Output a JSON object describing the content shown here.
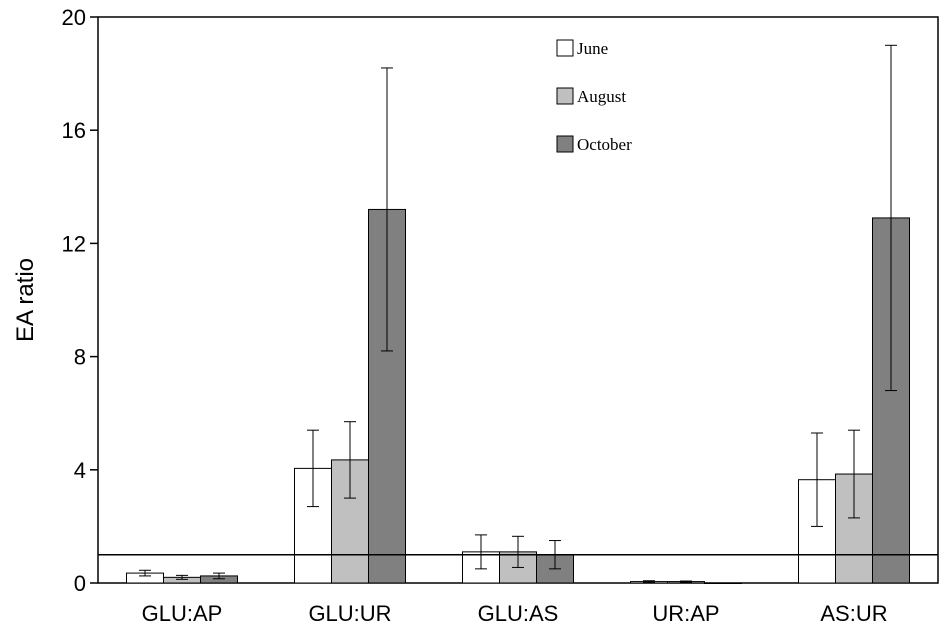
{
  "chart_data": {
    "type": "bar",
    "title": "",
    "xlabel": "",
    "ylabel": "EA ratio",
    "ylim": [
      0,
      20
    ],
    "yticks": [
      0,
      4,
      8,
      12,
      16,
      20
    ],
    "reference_line": 1,
    "grid": false,
    "legend_position": "top-center",
    "categories": [
      "GLU:AP",
      "GLU:UR",
      "GLU:AS",
      "UR:AP",
      "AS:UR"
    ],
    "series": [
      {
        "name": "June",
        "color": "#ffffff",
        "values": [
          0.35,
          4.05,
          1.1,
          0.05,
          3.65
        ],
        "errors": [
          0.1,
          1.35,
          0.6,
          0.03,
          1.65
        ]
      },
      {
        "name": "August",
        "color": "#c0c0c0",
        "values": [
          0.2,
          4.35,
          1.1,
          0.05,
          3.85
        ],
        "errors": [
          0.07,
          1.35,
          0.55,
          0.02,
          1.55
        ]
      },
      {
        "name": "October",
        "color": "#808080",
        "values": [
          0.25,
          13.2,
          1.0,
          0.0,
          12.9
        ],
        "errors": [
          0.1,
          5.0,
          0.5,
          0.0,
          6.1
        ]
      }
    ]
  }
}
